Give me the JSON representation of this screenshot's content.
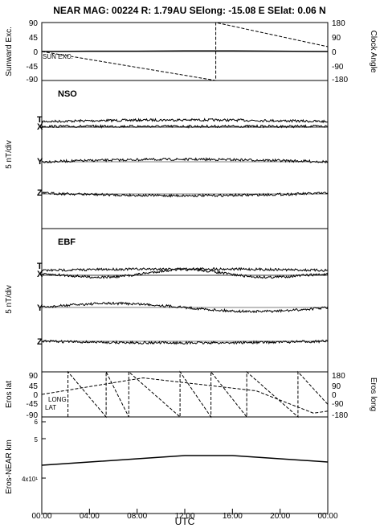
{
  "title": "NEAR MAG: 00224  R: 1.79AU  SElong:  -15.08 E  SElat:    0.06 N",
  "x_label": "UTC",
  "x_ticks": [
    "00:00",
    "04:00",
    "08:00",
    "12:00",
    "16:00",
    "20:00",
    "00:00"
  ],
  "panel1": {
    "left_label": "Sunward Exc.",
    "right_label": "Clock Angle",
    "left_ticks": [
      "90",
      "45",
      "0",
      "-45",
      "-90"
    ],
    "right_ticks": [
      "180",
      "90",
      "0",
      "-90",
      "-180"
    ],
    "inline_label": "SUN EXC."
  },
  "panel2": {
    "name": "NSO",
    "side_label": "5 nT/div",
    "traces": [
      "T",
      "X",
      "Y",
      "Z"
    ]
  },
  "panel3": {
    "name": "EBF",
    "side_label": "5 nT/div",
    "traces": [
      "T",
      "X",
      "Y",
      "Z"
    ]
  },
  "panel4": {
    "left_label": "Eros lat",
    "right_label": "Eros long",
    "left_ticks": [
      "90",
      "45",
      "0",
      "-45",
      "-90"
    ],
    "right_ticks": [
      "180",
      "90",
      "0",
      "-90",
      "-180"
    ],
    "inline_labels": [
      "LONG",
      "LAT"
    ]
  },
  "panel5": {
    "left_label": "Eros-NEAR km",
    "left_ticks": [
      "6",
      "5",
      "4x10¹"
    ]
  },
  "chart_data": [
    {
      "type": "line",
      "x_unit": "hours UTC",
      "x_range": [
        0,
        24
      ],
      "series": [
        {
          "name": "SUN EXC.",
          "axis": "left",
          "ylim": [
            -90,
            90
          ],
          "x": [
            0,
            4,
            8,
            12,
            16,
            20,
            24
          ],
          "y": [
            0,
            1,
            1,
            2,
            2,
            1,
            0
          ]
        },
        {
          "axis": "right",
          "ylim": [
            -180,
            180
          ],
          "style": "dashed",
          "x": [
            0,
            14.6,
            14.6,
            24
          ],
          "y": [
            0,
            -180,
            180,
            30
          ]
        }
      ]
    },
    {
      "type": "line",
      "x_range": [
        0,
        24
      ],
      "series": [
        {
          "name": "T",
          "offset_div": 0,
          "amp_nT": 1.5
        },
        {
          "name": "X",
          "offset_div": 0.5,
          "amp_nT": 1.5
        },
        {
          "name": "Y",
          "offset_div": 0,
          "amp_nT": 1.5
        },
        {
          "name": "Z",
          "offset_div": 0,
          "amp_nT": 1.5
        }
      ]
    },
    {
      "type": "line",
      "x_range": [
        0,
        24
      ],
      "series": [
        {
          "name": "T",
          "offset_div": 0,
          "amp_nT": 1.5
        },
        {
          "name": "X",
          "offset_div": 0,
          "amp_nT": 2.5
        },
        {
          "name": "Y",
          "offset_div": 0,
          "amp_nT": 2
        },
        {
          "name": "Z",
          "offset_div": 0,
          "amp_nT": 1.5
        }
      ]
    },
    {
      "type": "line",
      "x_range": [
        0,
        24
      ],
      "series": [
        {
          "name": "LAT",
          "axis": "left",
          "ylim": [
            -90,
            90
          ],
          "style": "dashed",
          "x": [
            0,
            8.5,
            18,
            22.8,
            24
          ],
          "y": [
            0,
            66,
            14,
            -75,
            -67
          ]
        },
        {
          "name": "LONG",
          "axis": "right",
          "ylim": [
            -180,
            180
          ],
          "style": "dashed",
          "x": [
            2.2,
            2.2,
            5.4,
            5.4,
            7.3,
            7.3,
            11.6,
            11.6,
            14.2,
            14.2,
            17.2,
            17.2,
            21.5,
            21.5,
            24
          ],
          "y": [
            -180,
            180,
            -180,
            180,
            -180,
            180,
            -180,
            180,
            -180,
            180,
            -180,
            180,
            -180,
            180,
            -80
          ]
        }
      ]
    },
    {
      "type": "line",
      "x_range": [
        0,
        24
      ],
      "ylim": [
        35,
        65
      ],
      "series": [
        {
          "name": "Eros-NEAR km",
          "x": [
            0,
            4,
            8,
            12,
            16,
            20,
            24
          ],
          "y": [
            50,
            51,
            52,
            53,
            53,
            52,
            51
          ]
        }
      ]
    }
  ]
}
